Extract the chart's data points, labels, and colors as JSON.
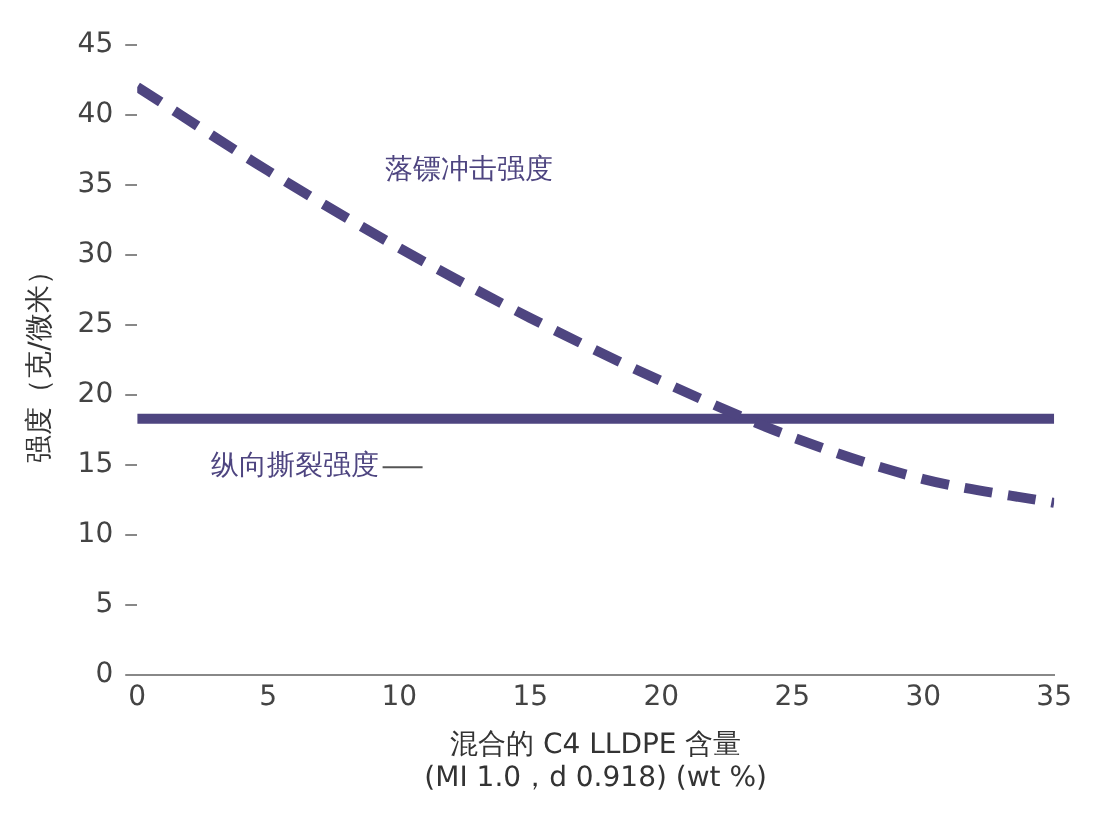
{
  "chart_data": {
    "type": "line",
    "ylabel": "强度（克/微米）",
    "xlabel": "混合的 C4 LLDPE 含量\n(MI 1.0，d 0.918) (wt %)",
    "x": [
      0,
      5,
      10,
      15,
      20,
      25,
      30,
      35
    ],
    "series": [
      {
        "name": "落镖冲击强度",
        "color": "#4e4580",
        "line_style": "dashed",
        "values": [
          42,
          36,
          30.5,
          25.5,
          21,
          17,
          14,
          12.3
        ]
      },
      {
        "name": "纵向撕裂强度",
        "color": "#4e4580",
        "line_style": "solid",
        "x": [
          0,
          35
        ],
        "values": [
          18.3,
          18.3
        ]
      }
    ],
    "xlim": [
      0,
      35
    ],
    "xticks": [
      0,
      5,
      10,
      15,
      20,
      25,
      30,
      35
    ],
    "ylim": [
      0,
      45
    ],
    "yticks": [
      0,
      5,
      10,
      15,
      20,
      25,
      30,
      35,
      40,
      45
    ],
    "grid": false,
    "legend": false,
    "marker": "none"
  }
}
